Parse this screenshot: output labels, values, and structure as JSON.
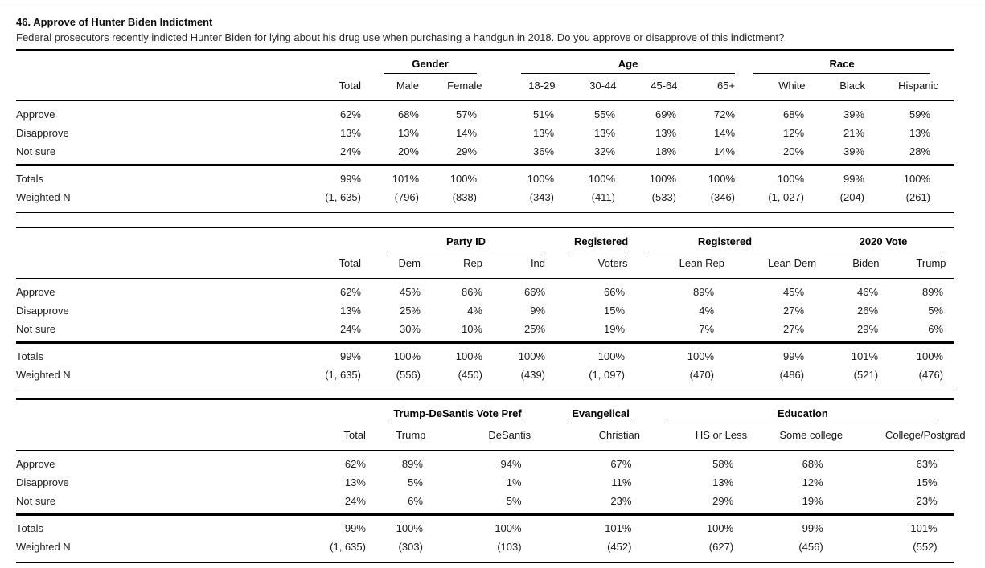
{
  "header": {
    "title": "46. Approve of Hunter Biden Indictment",
    "question": "Federal prosecutors recently indicted Hunter Biden for lying about his drug use when purchasing a handgun in 2018. Do you approve or disapprove of this indictment?"
  },
  "colors": {
    "rule": "#000000",
    "top_divider": "#cfcfcf",
    "text": "#1c1c1c"
  },
  "tables": [
    {
      "name": "demographics",
      "total_column": "Total",
      "groups": [
        {
          "label": "Gender",
          "columns": [
            "Male",
            "Female"
          ]
        },
        {
          "label": "Age",
          "columns": [
            "18-29",
            "30-44",
            "45-64",
            "65+"
          ]
        },
        {
          "label": "Race",
          "columns": [
            "White",
            "Black",
            "Hispanic"
          ]
        }
      ],
      "rows": [
        {
          "label": "Approve",
          "values": [
            "62%",
            "68%",
            "57%",
            "51%",
            "55%",
            "69%",
            "72%",
            "68%",
            "39%",
            "59%"
          ]
        },
        {
          "label": "Disapprove",
          "values": [
            "13%",
            "13%",
            "14%",
            "13%",
            "13%",
            "13%",
            "14%",
            "12%",
            "21%",
            "13%"
          ]
        },
        {
          "label": "Not sure",
          "values": [
            "24%",
            "20%",
            "29%",
            "36%",
            "32%",
            "18%",
            "14%",
            "20%",
            "39%",
            "28%"
          ]
        }
      ],
      "summary_rows": [
        {
          "label": "Totals",
          "values": [
            "99%",
            "101%",
            "100%",
            "100%",
            "100%",
            "100%",
            "100%",
            "100%",
            "99%",
            "100%"
          ]
        },
        {
          "label": "Weighted N",
          "values": [
            "(1, 635)",
            "(796)",
            "(838)",
            "(343)",
            "(411)",
            "(533)",
            "(346)",
            "(1, 027)",
            "(204)",
            "(261)"
          ]
        }
      ]
    },
    {
      "name": "politics",
      "total_column": "Total",
      "groups": [
        {
          "label": "Party ID",
          "columns": [
            "Dem",
            "Rep",
            "Ind"
          ]
        },
        {
          "label": "Registered",
          "columns": [
            "Voters"
          ]
        },
        {
          "label": "Registered",
          "columns": [
            "Lean Rep",
            "Lean Dem"
          ]
        },
        {
          "label": "2020 Vote",
          "columns": [
            "Biden",
            "Trump"
          ]
        }
      ],
      "rows": [
        {
          "label": "Approve",
          "values": [
            "62%",
            "45%",
            "86%",
            "66%",
            "66%",
            "89%",
            "45%",
            "46%",
            "89%"
          ]
        },
        {
          "label": "Disapprove",
          "values": [
            "13%",
            "25%",
            "4%",
            "9%",
            "15%",
            "4%",
            "27%",
            "26%",
            "5%"
          ]
        },
        {
          "label": "Not sure",
          "values": [
            "24%",
            "30%",
            "10%",
            "25%",
            "19%",
            "7%",
            "27%",
            "29%",
            "6%"
          ]
        }
      ],
      "summary_rows": [
        {
          "label": "Totals",
          "values": [
            "99%",
            "100%",
            "100%",
            "100%",
            "100%",
            "100%",
            "99%",
            "101%",
            "100%"
          ]
        },
        {
          "label": "Weighted N",
          "values": [
            "(1, 635)",
            "(556)",
            "(450)",
            "(439)",
            "(1, 097)",
            "(470)",
            "(486)",
            "(521)",
            "(476)"
          ]
        }
      ]
    },
    {
      "name": "preference-religion-education",
      "total_column": "Total",
      "groups": [
        {
          "label": "Trump-DeSantis Vote Pref",
          "columns": [
            "Trump",
            "DeSantis"
          ]
        },
        {
          "label": "Evangelical",
          "columns": [
            "Christian"
          ]
        },
        {
          "label": "Education",
          "columns": [
            "HS or Less",
            "Some college",
            "College/Postgrad"
          ]
        }
      ],
      "rows": [
        {
          "label": "Approve",
          "values": [
            "62%",
            "89%",
            "94%",
            "67%",
            "58%",
            "68%",
            "63%"
          ]
        },
        {
          "label": "Disapprove",
          "values": [
            "13%",
            "5%",
            "1%",
            "11%",
            "13%",
            "12%",
            "15%"
          ]
        },
        {
          "label": "Not sure",
          "values": [
            "24%",
            "6%",
            "5%",
            "23%",
            "29%",
            "19%",
            "23%"
          ]
        }
      ],
      "summary_rows": [
        {
          "label": "Totals",
          "values": [
            "99%",
            "100%",
            "100%",
            "101%",
            "100%",
            "99%",
            "101%"
          ]
        },
        {
          "label": "Weighted N",
          "values": [
            "(1, 635)",
            "(303)",
            "(103)",
            "(452)",
            "(627)",
            "(456)",
            "(552)"
          ]
        }
      ]
    }
  ]
}
